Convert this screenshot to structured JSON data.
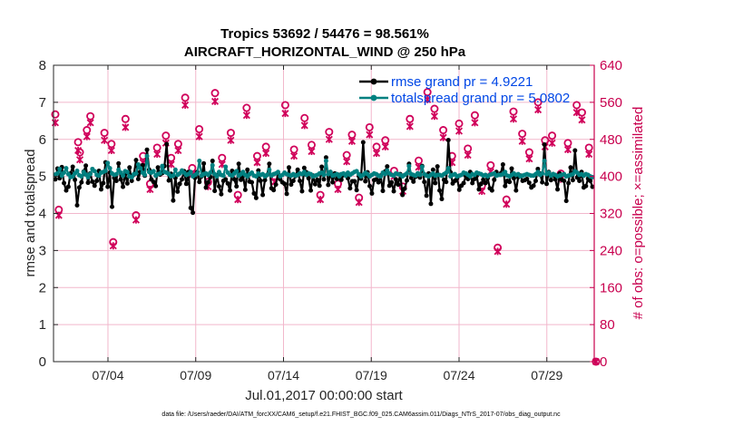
{
  "chart_data": {
    "type": "line",
    "title": "Tropics 53692 / 54476 = 98.561%",
    "subtitle": "AIRCRAFT_HORIZONTAL_WIND @ 250 hPa",
    "xlabel": "Jul.01,2017 00:00:00 start",
    "ylabel_left": "rmse and totalspread",
    "ylabel_right": "# of obs: o=possible; ×=assimilated",
    "footer": "data file: /Users/raeder/DAI/ATM_forcXX/CAM6_setup/f.e21.FHIST_BGC.f09_025.CAM6assim.011/Diags_NTrS_2017-07/obs_diag_output.nc",
    "xlim": [
      0.9,
      31.7
    ],
    "ylim_left": [
      0,
      8
    ],
    "ylim_right": [
      0,
      640
    ],
    "x_tick_values": [
      4,
      9,
      14,
      19,
      24,
      29
    ],
    "x_tick_labels": [
      "07/04",
      "07/09",
      "07/14",
      "07/19",
      "07/24",
      "07/29"
    ],
    "y_left_ticks": [
      0,
      1,
      2,
      3,
      4,
      5,
      6,
      7,
      8
    ],
    "y_right_ticks": [
      0,
      80,
      160,
      240,
      320,
      400,
      480,
      560,
      640
    ],
    "grid": true,
    "legend_location": "top-right",
    "colors": {
      "rmse": "#000000",
      "totalspread": "#008080",
      "obs": "#d0005a",
      "right_axis": "#c8004e",
      "legend_text": "#0047e6",
      "grid": "#f2b7cc"
    },
    "series": [
      {
        "name": "rmse grand pr = 4.9221",
        "axis": "left",
        "values": [
          4.92,
          5.21,
          4.95,
          5.25,
          4.82,
          4.62,
          4.72,
          5.08,
          5.26,
          4.91,
          4.22,
          4.7,
          4.84,
          5.13,
          5.29,
          4.83,
          5.08,
          4.86,
          4.75,
          4.88,
          5.15,
          4.65,
          4.82,
          5.38,
          4.72,
          5.1,
          4.18,
          4.96,
          4.88,
          5.35,
          4.92,
          4.72,
          5.06,
          4.81,
          5.24,
          4.88,
          5.05,
          5.44,
          4.93,
          5.12,
          5.3,
          5.02,
          5.72,
          5.18,
          4.92,
          4.85,
          4.74,
          5.24,
          5.05,
          5.09,
          5.28,
          5.87,
          4.89,
          5.07,
          4.35,
          4.96,
          4.59,
          4.8,
          4.92,
          5.14,
          4.8,
          5.12,
          4.15,
          4.02,
          4.96,
          5.12,
          4.85,
          5.0,
          5.35,
          4.7,
          4.84,
          4.98,
          5.42,
          4.61,
          5.03,
          4.73,
          4.52,
          4.88,
          4.92,
          4.81,
          4.62,
          5.15,
          4.92,
          4.73,
          5.34,
          4.91,
          5.02,
          4.64,
          5.18,
          4.86,
          4.84,
          4.54,
          4.42,
          5.16,
          4.88,
          4.5,
          4.9,
          5.04,
          5.34,
          4.68,
          4.63,
          4.78,
          5.08,
          4.92,
          4.84,
          4.8,
          4.53,
          5.24,
          4.78,
          4.88,
          5.01,
          5.18,
          4.88,
          4.6,
          5.23,
          5.11,
          4.95,
          4.62,
          5.02,
          4.79,
          4.91,
          4.75,
          5.26,
          4.92,
          5.51,
          4.77,
          5.12,
          4.84,
          5.08,
          4.93,
          5.04,
          4.91,
          5.04,
          5.04,
          4.95,
          4.68,
          4.87,
          4.87,
          4.63,
          5.01,
          4.94,
          5.92,
          4.87,
          5.11,
          4.74,
          4.54,
          4.9,
          4.92,
          4.84,
          5.02,
          4.61,
          5.13,
          5.27,
          4.75,
          4.84,
          4.6,
          4.92,
          4.78,
          5.06,
          4.5,
          4.67,
          4.89,
          5.34,
          4.96,
          4.86,
          4.99,
          5.08,
          4.97,
          5.28,
          4.85,
          4.48,
          5.08,
          4.26,
          5.18,
          4.82,
          5.27,
          4.62,
          4.39,
          4.91,
          4.85,
          5.98,
          5.11,
          4.81,
          4.88,
          4.95,
          4.64,
          4.75,
          4.82,
          5.01,
          4.93,
          5.12,
          4.82,
          4.93,
          5.02,
          4.65,
          4.8,
          4.91,
          4.82,
          4.95,
          4.68,
          4.62,
          4.91,
          5.12,
          5.04,
          5.08,
          5.32,
          4.74,
          4.88,
          4.85,
          5.21,
          4.95,
          4.62,
          4.98,
          5.02,
          4.88,
          4.9,
          4.93,
          4.83,
          4.7,
          4.75,
          4.88,
          5.2,
          5.08,
          4.84,
          5.86,
          4.8,
          5.12,
          4.9,
          5.06,
          4.92,
          4.65,
          5.08,
          4.91,
          4.88,
          4.34,
          4.82,
          5.24,
          4.9,
          5.7,
          4.97,
          4.88,
          5.12,
          4.7,
          4.74,
          4.94,
          4.88,
          4.72
        ]
      },
      {
        "name": "totalspread grand pr = 5.0802",
        "axis": "left",
        "values": [
          5.05,
          5.08,
          5.2,
          5.02,
          5.1,
          5.22,
          5.06,
          4.98,
          5.0,
          5.08,
          5.15,
          5.03,
          5.0,
          5.12,
          5.05,
          4.98,
          5.06,
          5.2,
          5.14,
          5.04,
          5.02,
          5.1,
          5.12,
          5.15,
          5.36,
          5.22,
          5.08,
          5.04,
          5.06,
          5.18,
          5.1,
          5.02,
          5.14,
          5.12,
          5.0,
          4.98,
          5.06,
          5.08,
          5.32,
          5.22,
          5.1,
          5.04,
          5.55,
          5.12,
          5.1,
          5.14,
          5.02,
          5.06,
          5.08,
          5.28,
          5.12,
          5.1,
          5.06,
          5.0,
          5.02,
          5.18,
          5.04,
          5.08,
          5.16,
          5.1,
          5.04,
          5.06,
          5.12,
          5.0,
          5.04,
          5.08,
          5.42,
          5.02,
          5.06,
          5.08,
          5.04,
          5.1,
          5.3,
          5.06,
          5.0,
          5.12,
          5.04,
          5.02,
          5.26,
          5.1,
          5.04,
          5.02,
          5.08,
          5.14,
          5.02,
          5.06,
          5.12,
          5.04,
          5.0,
          5.06,
          5.1,
          5.02,
          5.0,
          5.08,
          5.04,
          5.06,
          5.0,
          5.04,
          5.18,
          5.02,
          5.06,
          5.08,
          5.12,
          5.0,
          5.04,
          5.1,
          5.06,
          5.04,
          5.02,
          5.06,
          5.02,
          5.04,
          5.08,
          5.06,
          5.12,
          5.04,
          5.08,
          5.06,
          5.0,
          5.02,
          5.04,
          5.08,
          5.1,
          5.04,
          5.42,
          5.06,
          5.12,
          5.02,
          5.04,
          5.06,
          5.0,
          5.06,
          5.08,
          5.02,
          5.1,
          5.04,
          5.08,
          5.12,
          5.14,
          5.06,
          5.0,
          5.04,
          5.1,
          5.06,
          5.0,
          5.04,
          5.08,
          5.06,
          5.02,
          5.0,
          5.1,
          5.06,
          5.16,
          5.08,
          5.04,
          5.02,
          5.08,
          5.06,
          5.04,
          5.0,
          5.04,
          5.08,
          5.28,
          5.06,
          5.04,
          5.02,
          5.08,
          5.04,
          5.26,
          5.06,
          5.02,
          5.0,
          5.04,
          5.08,
          5.02,
          5.04,
          5.04,
          5.02,
          5.06,
          5.1,
          5.22,
          5.0,
          5.04,
          5.06,
          5.0,
          5.02,
          5.04,
          5.1,
          5.08,
          5.04,
          5.0,
          5.06,
          5.04,
          5.1,
          5.08,
          5.06,
          5.02,
          5.04,
          5.0,
          5.04,
          5.06,
          5.08,
          5.02,
          5.04,
          5.04,
          5.06,
          5.12,
          5.02,
          5.0,
          5.04,
          5.08,
          5.04,
          5.06,
          5.0,
          5.02,
          5.04,
          5.06,
          5.04,
          5.02,
          5.02,
          5.06,
          5.12,
          5.04,
          5.08,
          5.42,
          5.06,
          5.1,
          5.02,
          5.06,
          5.04,
          5.0,
          5.02,
          5.04,
          5.06,
          5.0,
          5.02,
          5.04,
          5.06,
          5.14,
          5.1,
          5.04,
          5.06,
          5.02,
          5.06,
          5.04,
          5.0,
          4.98
        ]
      },
      {
        "name": "obs possible",
        "axis": "right",
        "marker": "o",
        "points": [
          [
            1.0,
            534
          ],
          [
            1.2,
            328
          ],
          [
            2.3,
            474
          ],
          [
            2.4,
            452
          ],
          [
            2.8,
            500
          ],
          [
            3.0,
            530
          ],
          [
            3.8,
            494
          ],
          [
            4.2,
            470
          ],
          [
            4.3,
            258
          ],
          [
            5.0,
            524
          ],
          [
            5.6,
            316
          ],
          [
            6.0,
            444
          ],
          [
            6.4,
            384
          ],
          [
            6.8,
            462
          ],
          [
            7.3,
            488
          ],
          [
            7.6,
            440
          ],
          [
            8.0,
            470
          ],
          [
            8.4,
            570
          ],
          [
            8.8,
            418
          ],
          [
            9.2,
            502
          ],
          [
            9.7,
            388
          ],
          [
            10.1,
            580
          ],
          [
            10.5,
            440
          ],
          [
            11.0,
            494
          ],
          [
            11.4,
            360
          ],
          [
            11.9,
            548
          ],
          [
            12.5,
            444
          ],
          [
            13.0,
            464
          ],
          [
            13.5,
            400
          ],
          [
            14.1,
            554
          ],
          [
            14.6,
            458
          ],
          [
            15.2,
            526
          ],
          [
            15.6,
            468
          ],
          [
            16.1,
            360
          ],
          [
            16.6,
            496
          ],
          [
            17.1,
            384
          ],
          [
            17.6,
            446
          ],
          [
            17.9,
            490
          ],
          [
            18.3,
            354
          ],
          [
            18.9,
            506
          ],
          [
            19.3,
            464
          ],
          [
            19.8,
            478
          ],
          [
            20.3,
            412
          ],
          [
            20.8,
            378
          ],
          [
            21.2,
            524
          ],
          [
            21.7,
            434
          ],
          [
            22.2,
            582
          ],
          [
            22.6,
            546
          ],
          [
            23.1,
            500
          ],
          [
            23.6,
            444
          ],
          [
            24.0,
            514
          ],
          [
            24.5,
            460
          ],
          [
            24.9,
            532
          ],
          [
            25.3,
            380
          ],
          [
            25.8,
            424
          ],
          [
            26.2,
            246
          ],
          [
            26.7,
            350
          ],
          [
            27.1,
            540
          ],
          [
            27.6,
            492
          ],
          [
            28.0,
            452
          ],
          [
            28.5,
            560
          ],
          [
            28.9,
            478
          ],
          [
            29.3,
            488
          ],
          [
            29.8,
            406
          ],
          [
            30.2,
            472
          ],
          [
            30.7,
            554
          ],
          [
            31.0,
            538
          ],
          [
            31.4,
            462
          ],
          [
            31.8,
            0
          ]
        ]
      },
      {
        "name": "obs assimilated",
        "axis": "right",
        "marker": "x",
        "points": [
          [
            1.0,
            516
          ],
          [
            1.2,
            316
          ],
          [
            2.3,
            456
          ],
          [
            2.4,
            436
          ],
          [
            2.8,
            486
          ],
          [
            3.0,
            516
          ],
          [
            3.8,
            478
          ],
          [
            4.2,
            456
          ],
          [
            4.3,
            250
          ],
          [
            5.0,
            506
          ],
          [
            5.6,
            306
          ],
          [
            6.0,
            430
          ],
          [
            6.4,
            372
          ],
          [
            6.8,
            448
          ],
          [
            7.3,
            472
          ],
          [
            7.6,
            426
          ],
          [
            8.0,
            456
          ],
          [
            8.4,
            554
          ],
          [
            8.8,
            404
          ],
          [
            9.2,
            486
          ],
          [
            9.7,
            378
          ],
          [
            10.1,
            562
          ],
          [
            10.5,
            426
          ],
          [
            11.0,
            478
          ],
          [
            11.4,
            350
          ],
          [
            11.9,
            532
          ],
          [
            12.5,
            430
          ],
          [
            13.0,
            450
          ],
          [
            13.5,
            388
          ],
          [
            14.1,
            536
          ],
          [
            14.6,
            444
          ],
          [
            15.2,
            510
          ],
          [
            15.6,
            454
          ],
          [
            16.1,
            350
          ],
          [
            16.6,
            480
          ],
          [
            17.1,
            372
          ],
          [
            17.6,
            432
          ],
          [
            17.9,
            476
          ],
          [
            18.3,
            344
          ],
          [
            18.9,
            490
          ],
          [
            19.3,
            450
          ],
          [
            19.8,
            464
          ],
          [
            20.3,
            400
          ],
          [
            20.8,
            368
          ],
          [
            21.2,
            508
          ],
          [
            21.7,
            420
          ],
          [
            22.2,
            566
          ],
          [
            22.6,
            530
          ],
          [
            23.1,
            484
          ],
          [
            23.6,
            430
          ],
          [
            24.0,
            498
          ],
          [
            24.5,
            446
          ],
          [
            24.9,
            516
          ],
          [
            25.3,
            368
          ],
          [
            25.8,
            410
          ],
          [
            26.2,
            238
          ],
          [
            26.7,
            340
          ],
          [
            27.1,
            524
          ],
          [
            27.6,
            476
          ],
          [
            28.0,
            438
          ],
          [
            28.5,
            544
          ],
          [
            28.9,
            464
          ],
          [
            29.3,
            472
          ],
          [
            29.8,
            394
          ],
          [
            30.2,
            458
          ],
          [
            30.7,
            538
          ],
          [
            31.0,
            522
          ],
          [
            31.4,
            448
          ],
          [
            31.8,
            0
          ]
        ]
      }
    ]
  }
}
